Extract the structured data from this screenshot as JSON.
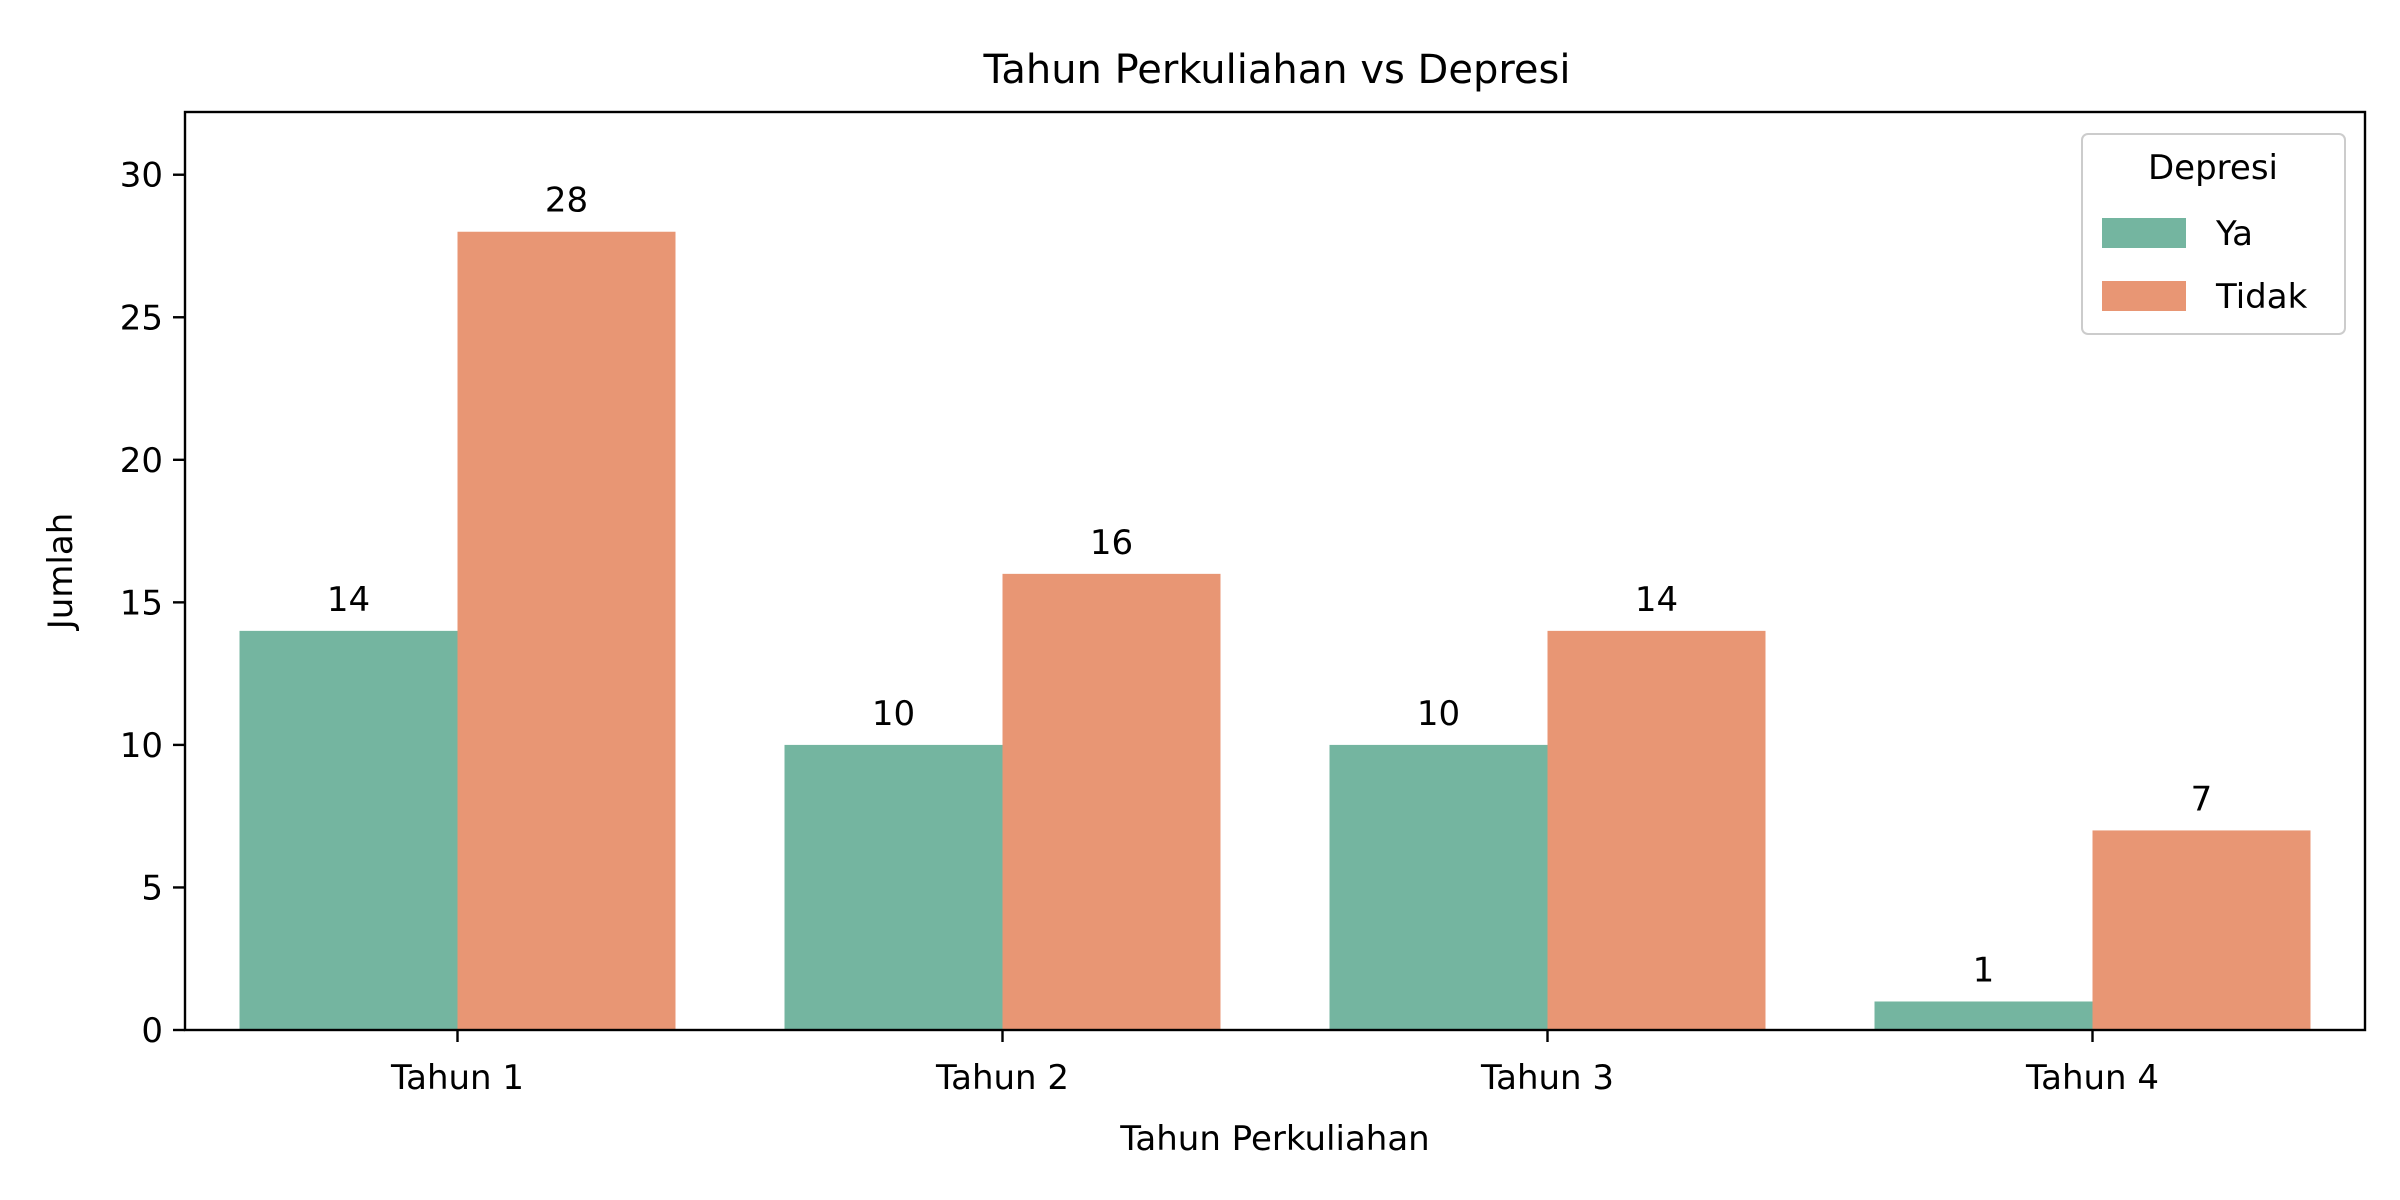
{
  "chart_data": {
    "type": "bar",
    "title": "Tahun Perkuliahan vs Depresi",
    "xlabel": "Tahun Perkuliahan",
    "ylabel": "Jumlah",
    "categories": [
      "Tahun 1",
      "Tahun 2",
      "Tahun 3",
      "Tahun 4"
    ],
    "series": [
      {
        "name": "Ya",
        "values": [
          14,
          10,
          10,
          1
        ],
        "color": "#74b5a0"
      },
      {
        "name": "Tidak",
        "values": [
          28,
          16,
          14,
          7
        ],
        "color": "#e89674"
      }
    ],
    "ylim": [
      0,
      32.2
    ],
    "yticks": [
      0,
      5,
      10,
      15,
      20,
      25,
      30
    ],
    "legend": {
      "title": "Depresi",
      "placement": "top-right"
    },
    "grid": false
  }
}
